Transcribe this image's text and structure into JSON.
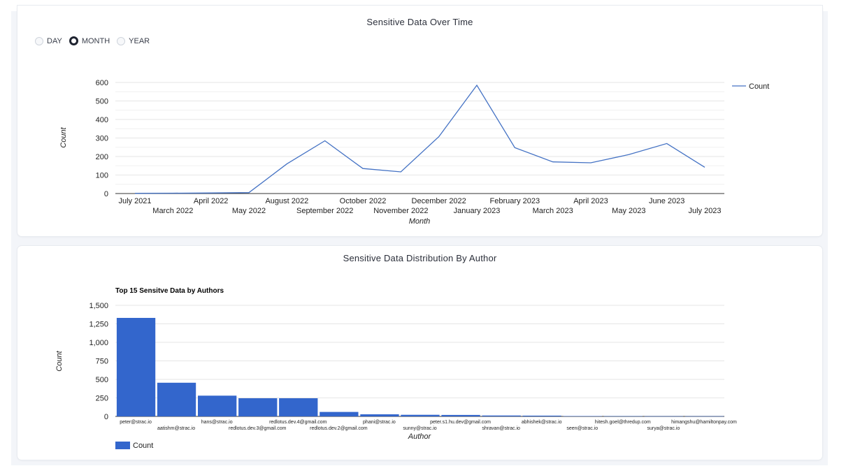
{
  "line_card": {
    "title": "Sensitive Data Over Time",
    "radios": [
      {
        "label": "DAY",
        "checked": false
      },
      {
        "label": "MONTH",
        "checked": true
      },
      {
        "label": "YEAR",
        "checked": false
      }
    ]
  },
  "bar_card": {
    "title": "Sensitive Data Distribution By Author"
  },
  "colors": {
    "line": "#4472c4",
    "bar": "#3366cc",
    "grid": "#e6e6e6",
    "axis": "#333333"
  },
  "chart_data": [
    {
      "type": "line",
      "title": "",
      "xlabel": "Month",
      "ylabel": "Count",
      "ylim": [
        0,
        600
      ],
      "yticks": [
        0,
        100,
        200,
        300,
        400,
        500,
        600
      ],
      "grid": true,
      "legend_position": "right",
      "x": [
        "July 2021",
        "March 2022",
        "April 2022",
        "May 2022",
        "August 2022",
        "September 2022",
        "October 2022",
        "November 2022",
        "December 2022",
        "January 2023",
        "February 2023",
        "March 2023",
        "April 2023",
        "May 2023",
        "June 2023",
        "July 2023"
      ],
      "series": [
        {
          "name": "Count",
          "values": [
            1,
            2,
            3,
            5,
            160,
            285,
            135,
            117,
            307,
            585,
            248,
            171,
            166,
            210,
            270,
            142
          ]
        }
      ]
    },
    {
      "type": "bar",
      "title": "Top 15 Sensitve Data by Authors",
      "xlabel": "Author",
      "ylabel": "Count",
      "ylim": [
        0,
        1500
      ],
      "yticks": [
        "0",
        "250",
        "500",
        "750",
        "1,000",
        "1,250",
        "1,500"
      ],
      "grid": true,
      "legend_position": "bottom-left",
      "categories": [
        "peter@strac.io",
        "aatishm@strac.io",
        "hans@strac.io",
        "redlotus.dev.3@gmail.com",
        "redlotus.dev.4@gmail.com",
        "redlotus.dev.2@gmail.com",
        "phani@strac.io",
        "sunny@strac.io",
        "peter.s1.hu.dev@gmail.com",
        "shravan@strac.io",
        "abhishek@strac.io",
        "seen@strac.io",
        "hitesh.goel@thredup.com",
        "surya@strac.io",
        "himangshu@hamiltonpay.com"
      ],
      "series": [
        {
          "name": "Count",
          "values": [
            1330,
            455,
            280,
            245,
            245,
            60,
            28,
            22,
            20,
            12,
            10,
            5,
            4,
            3,
            3
          ]
        }
      ]
    }
  ]
}
